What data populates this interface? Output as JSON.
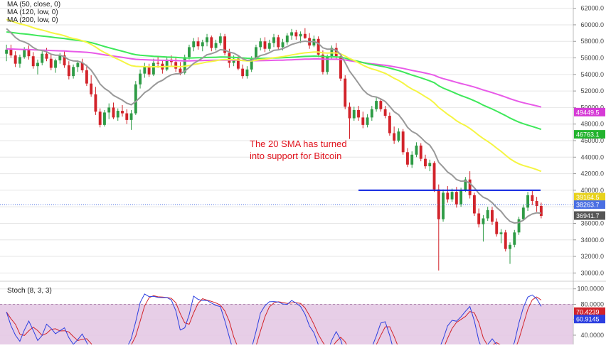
{
  "chart_data": [
    {
      "type": "candlestick",
      "legend": [
        "MA (50, close, 0)",
        "MA (120, low, 0)",
        "MA (200, low, 0)"
      ],
      "ylim": [
        29000,
        63000
      ],
      "yticks": [
        30000,
        32000,
        34000,
        36000,
        38000,
        40000,
        42000,
        44000,
        46000,
        48000,
        50000,
        52000,
        54000,
        56000,
        58000,
        60000,
        62000
      ],
      "ytick_labels": [
        "30000.0",
        "32000.0",
        "34000.0",
        "36000.0",
        "38000.0",
        "40000.0",
        "42000.0",
        "44000.0",
        "46000.0",
        "48000.0",
        "50000.0",
        "52000.0",
        "54000.0",
        "56000.0",
        "58000.0",
        "60000.0",
        "62000.0"
      ],
      "annotation": [
        "The 20 SMA has turned",
        "into support for Bitcoin"
      ],
      "horizontal_level": 40000,
      "price_tags": [
        {
          "label": "49449.5",
          "value": 49449.5,
          "color": "#d63bd6"
        },
        {
          "label": "46763.1",
          "value": 46763.1,
          "color": "#22b32e"
        },
        {
          "label": "39164.5",
          "value": 39164.5,
          "color": "#e8d21c"
        },
        {
          "label": "38263.7",
          "value": 38263.7,
          "color": "#4a6fe3"
        },
        {
          "label": "36941.7",
          "value": 36941.7,
          "color": "#555555"
        }
      ],
      "current_price": 38263.7,
      "colors": {
        "up": "#2e9b45",
        "down": "#d2232a",
        "sma20": "#999999",
        "ma50": "#f5f542",
        "ma120": "#3ee85a",
        "ma200": "#e85ae8",
        "level": "#0a1fe0",
        "grid": "#e6e6e6"
      },
      "ohlc": [
        [
          56500,
          57600,
          55600,
          57000
        ],
        [
          57000,
          57600,
          56000,
          56300
        ],
        [
          56300,
          56800,
          54900,
          55300
        ],
        [
          55300,
          56400,
          54800,
          56100
        ],
        [
          56100,
          57300,
          55900,
          57000
        ],
        [
          57000,
          57500,
          55800,
          56200
        ],
        [
          56200,
          56700,
          54700,
          55000
        ],
        [
          55000,
          55800,
          54000,
          55400
        ],
        [
          55400,
          56800,
          55100,
          56500
        ],
        [
          56500,
          57200,
          55600,
          55900
        ],
        [
          55900,
          56400,
          54500,
          54800
        ],
        [
          54800,
          55900,
          54200,
          55700
        ],
        [
          55700,
          56600,
          55300,
          56300
        ],
        [
          56300,
          56800,
          54800,
          55100
        ],
        [
          55100,
          55600,
          53400,
          53800
        ],
        [
          53800,
          55200,
          53500,
          54900
        ],
        [
          54900,
          55700,
          54300,
          55400
        ],
        [
          55400,
          55900,
          54200,
          54500
        ],
        [
          54500,
          55200,
          52600,
          52900
        ],
        [
          52900,
          53900,
          51300,
          51600
        ],
        [
          51600,
          52500,
          49100,
          49500
        ],
        [
          49500,
          49900,
          47600,
          47900
        ],
        [
          47900,
          49700,
          47700,
          49400
        ],
        [
          49400,
          50500,
          48600,
          50000
        ],
        [
          50000,
          50600,
          48600,
          48800
        ],
        [
          48800,
          49900,
          48400,
          49600
        ],
        [
          49600,
          50300,
          48900,
          49300
        ],
        [
          49300,
          49800,
          48000,
          48500
        ],
        [
          48500,
          49700,
          47300,
          49300
        ],
        [
          49300,
          53200,
          49100,
          52800
        ],
        [
          52800,
          54600,
          52300,
          54100
        ],
        [
          54100,
          55400,
          53600,
          54900
        ],
        [
          54900,
          55300,
          53700,
          54000
        ],
        [
          54000,
          55900,
          53800,
          55400
        ],
        [
          55400,
          56200,
          54800,
          55300
        ],
        [
          55300,
          55700,
          54100,
          54600
        ],
        [
          54600,
          56100,
          54400,
          55800
        ],
        [
          55800,
          56300,
          55000,
          55500
        ],
        [
          55500,
          56000,
          54300,
          54700
        ],
        [
          54700,
          55500,
          53900,
          54200
        ],
        [
          54200,
          56400,
          54000,
          56100
        ],
        [
          56100,
          57600,
          55800,
          57300
        ],
        [
          57300,
          58400,
          56800,
          58000
        ],
        [
          58000,
          58500,
          57000,
          57400
        ],
        [
          57400,
          58200,
          56800,
          57900
        ],
        [
          57900,
          58900,
          57400,
          58500
        ],
        [
          58500,
          58700,
          56800,
          57200
        ],
        [
          57200,
          58200,
          56900,
          57800
        ],
        [
          57800,
          59000,
          57500,
          58600
        ],
        [
          58600,
          58900,
          56300,
          56600
        ],
        [
          56600,
          57100,
          54800,
          55400
        ],
        [
          55400,
          56300,
          55000,
          55900
        ],
        [
          55900,
          56300,
          54500,
          54700
        ],
        [
          54700,
          55200,
          53500,
          53800
        ],
        [
          53800,
          55000,
          53500,
          54600
        ],
        [
          54600,
          56200,
          54300,
          55900
        ],
        [
          55900,
          57600,
          55700,
          57300
        ],
        [
          57300,
          58400,
          56900,
          58000
        ],
        [
          58000,
          58500,
          56700,
          57100
        ],
        [
          57100,
          58200,
          56800,
          57800
        ],
        [
          57800,
          58900,
          57300,
          58500
        ],
        [
          58500,
          58800,
          56900,
          57300
        ],
        [
          57300,
          58300,
          56900,
          57900
        ],
        [
          57900,
          59000,
          57600,
          58700
        ],
        [
          58700,
          59500,
          58200,
          59100
        ],
        [
          59100,
          59400,
          58200,
          58600
        ],
        [
          58600,
          59200,
          57800,
          58900
        ],
        [
          58900,
          59600,
          58300,
          58400
        ],
        [
          58400,
          59000,
          57100,
          57500
        ],
        [
          57500,
          58700,
          57300,
          58300
        ],
        [
          58300,
          58600,
          56100,
          56400
        ],
        [
          56400,
          56900,
          54000,
          54300
        ],
        [
          54300,
          56400,
          54000,
          56100
        ],
        [
          56100,
          57500,
          55800,
          57200
        ],
        [
          57200,
          57800,
          55900,
          56200
        ],
        [
          56200,
          56400,
          53200,
          53500
        ],
        [
          53500,
          53900,
          49800,
          50100
        ],
        [
          50100,
          50600,
          46200,
          48700
        ],
        [
          48700,
          50100,
          48400,
          49700
        ],
        [
          49700,
          50200,
          48400,
          48800
        ],
        [
          48800,
          49500,
          47500,
          47900
        ],
        [
          47900,
          49200,
          47600,
          48800
        ],
        [
          48800,
          50200,
          48400,
          49800
        ],
        [
          49800,
          51200,
          49500,
          50800
        ],
        [
          50800,
          51100,
          49500,
          49800
        ],
        [
          49800,
          50200,
          48700,
          49000
        ],
        [
          49000,
          49400,
          46600,
          46900
        ],
        [
          46900,
          47700,
          45600,
          46000
        ],
        [
          46000,
          47500,
          45800,
          47100
        ],
        [
          47100,
          47400,
          44300,
          44600
        ],
        [
          44600,
          45100,
          42800,
          43100
        ],
        [
          43100,
          44700,
          42700,
          44300
        ],
        [
          44300,
          45800,
          44000,
          45400
        ],
        [
          45400,
          45700,
          43500,
          43800
        ],
        [
          43800,
          44300,
          42600,
          42900
        ],
        [
          42900,
          43700,
          42300,
          43300
        ],
        [
          43300,
          43500,
          39800,
          40100
        ],
        [
          40100,
          40700,
          30300,
          36500
        ],
        [
          36500,
          40100,
          36200,
          39700
        ],
        [
          39700,
          40500,
          38500,
          38900
        ],
        [
          38900,
          40200,
          38600,
          39800
        ],
        [
          39800,
          40400,
          37900,
          38300
        ],
        [
          38300,
          40300,
          38000,
          40000
        ],
        [
          40000,
          41600,
          39800,
          41300
        ],
        [
          41300,
          42300,
          39000,
          39400
        ],
        [
          39400,
          39700,
          36900,
          37200
        ],
        [
          37200,
          37800,
          35500,
          35900
        ],
        [
          35900,
          37000,
          33800,
          36600
        ],
        [
          36600,
          38000,
          36300,
          37600
        ],
        [
          37600,
          38000,
          35800,
          36200
        ],
        [
          36200,
          36600,
          34400,
          34700
        ],
        [
          34700,
          35300,
          33600,
          34900
        ],
        [
          34900,
          35200,
          32600,
          32900
        ],
        [
          32900,
          33700,
          31100,
          33400
        ],
        [
          33400,
          35200,
          33100,
          34900
        ],
        [
          34900,
          36800,
          34600,
          36500
        ],
        [
          36500,
          38300,
          36300,
          37900
        ],
        [
          37900,
          39800,
          37500,
          39400
        ],
        [
          39400,
          39900,
          38200,
          38700
        ],
        [
          38700,
          39200,
          37400,
          38100
        ],
        [
          38100,
          38500,
          36600,
          36900
        ]
      ]
    },
    {
      "type": "line",
      "legend": [
        "Stoch (8, 3, 3)"
      ],
      "ylim": [
        28,
        108
      ],
      "yticks": [
        40,
        60,
        80,
        100
      ],
      "ytick_labels": [
        "40.0000",
        "60.0000",
        "80.0000",
        "100.0000"
      ],
      "bands": [
        20,
        80
      ],
      "price_tags": [
        {
          "label": "70.4239",
          "value": 70.4239,
          "color": "#d2232a"
        },
        {
          "label": "60.9145",
          "value": 60.9145,
          "color": "#2c3fe0"
        }
      ],
      "colors": {
        "k": "#2c3fe0",
        "d": "#d2232a",
        "band_fill": "#e3c6e3",
        "band_line": "#b088b0"
      }
    }
  ]
}
